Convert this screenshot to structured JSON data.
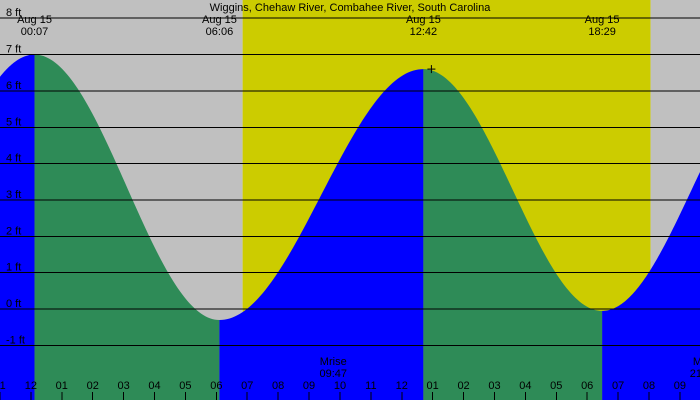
{
  "chart_data": {
    "type": "area",
    "title": "Wiggins, Chehaw River, Combahee River, South Carolina",
    "y_unit": "ft",
    "ylim": [
      -2.5,
      8.5
    ],
    "y_ticks": [
      {
        "value": 8,
        "label": "8 ft"
      },
      {
        "value": 7,
        "label": "7 ft"
      },
      {
        "value": 6,
        "label": "6 ft"
      },
      {
        "value": 5,
        "label": "5 ft"
      },
      {
        "value": 4,
        "label": "4 ft"
      },
      {
        "value": 3,
        "label": "3 ft"
      },
      {
        "value": 2,
        "label": "2 ft"
      },
      {
        "value": 1,
        "label": "1 ft"
      },
      {
        "value": 0,
        "label": "0 ft"
      },
      {
        "value": -1,
        "label": "-1 ft"
      }
    ],
    "x_range_hours": [
      -1,
      21.65
    ],
    "hour_ticks": [
      {
        "h": -1,
        "label": "11"
      },
      {
        "h": 0,
        "label": "12"
      },
      {
        "h": 1,
        "label": "01"
      },
      {
        "h": 2,
        "label": "02"
      },
      {
        "h": 3,
        "label": "03"
      },
      {
        "h": 4,
        "label": "04"
      },
      {
        "h": 5,
        "label": "05"
      },
      {
        "h": 6,
        "label": "06"
      },
      {
        "h": 7,
        "label": "07"
      },
      {
        "h": 8,
        "label": "08"
      },
      {
        "h": 9,
        "label": "09"
      },
      {
        "h": 10,
        "label": "10"
      },
      {
        "h": 11,
        "label": "11"
      },
      {
        "h": 12,
        "label": "12"
      },
      {
        "h": 13,
        "label": "01"
      },
      {
        "h": 14,
        "label": "02"
      },
      {
        "h": 15,
        "label": "03"
      },
      {
        "h": 16,
        "label": "04"
      },
      {
        "h": 17,
        "label": "05"
      },
      {
        "h": 18,
        "label": "06"
      },
      {
        "h": 19,
        "label": "07"
      },
      {
        "h": 20,
        "label": "08"
      },
      {
        "h": 21,
        "label": "09"
      }
    ],
    "tide_events": [
      {
        "type": "high",
        "h": 0.117,
        "height": 7.0,
        "date": "Aug 15",
        "time": "00:07"
      },
      {
        "type": "low",
        "h": 6.1,
        "height": -0.3,
        "date": "Aug 15",
        "time": "06:06"
      },
      {
        "type": "high",
        "h": 12.7,
        "height": 6.6,
        "date": "Aug 15",
        "time": "12:42"
      },
      {
        "type": "low",
        "h": 18.483,
        "height": -0.05,
        "date": "Aug 15",
        "time": "18:29"
      }
    ],
    "daylight": {
      "start_h": 6.85,
      "end_h": 20.05
    },
    "moon": [
      {
        "label": "Mrise",
        "time": "09:47",
        "h": 9.783
      },
      {
        "label": "M",
        "time": "21",
        "h": 21.6
      }
    ],
    "colors": {
      "night": "#c0c0c0",
      "day": "#cccc00",
      "rising": "#0000ff",
      "falling": "#2e8b57",
      "grid": "#000000",
      "marker": "#000000"
    }
  }
}
